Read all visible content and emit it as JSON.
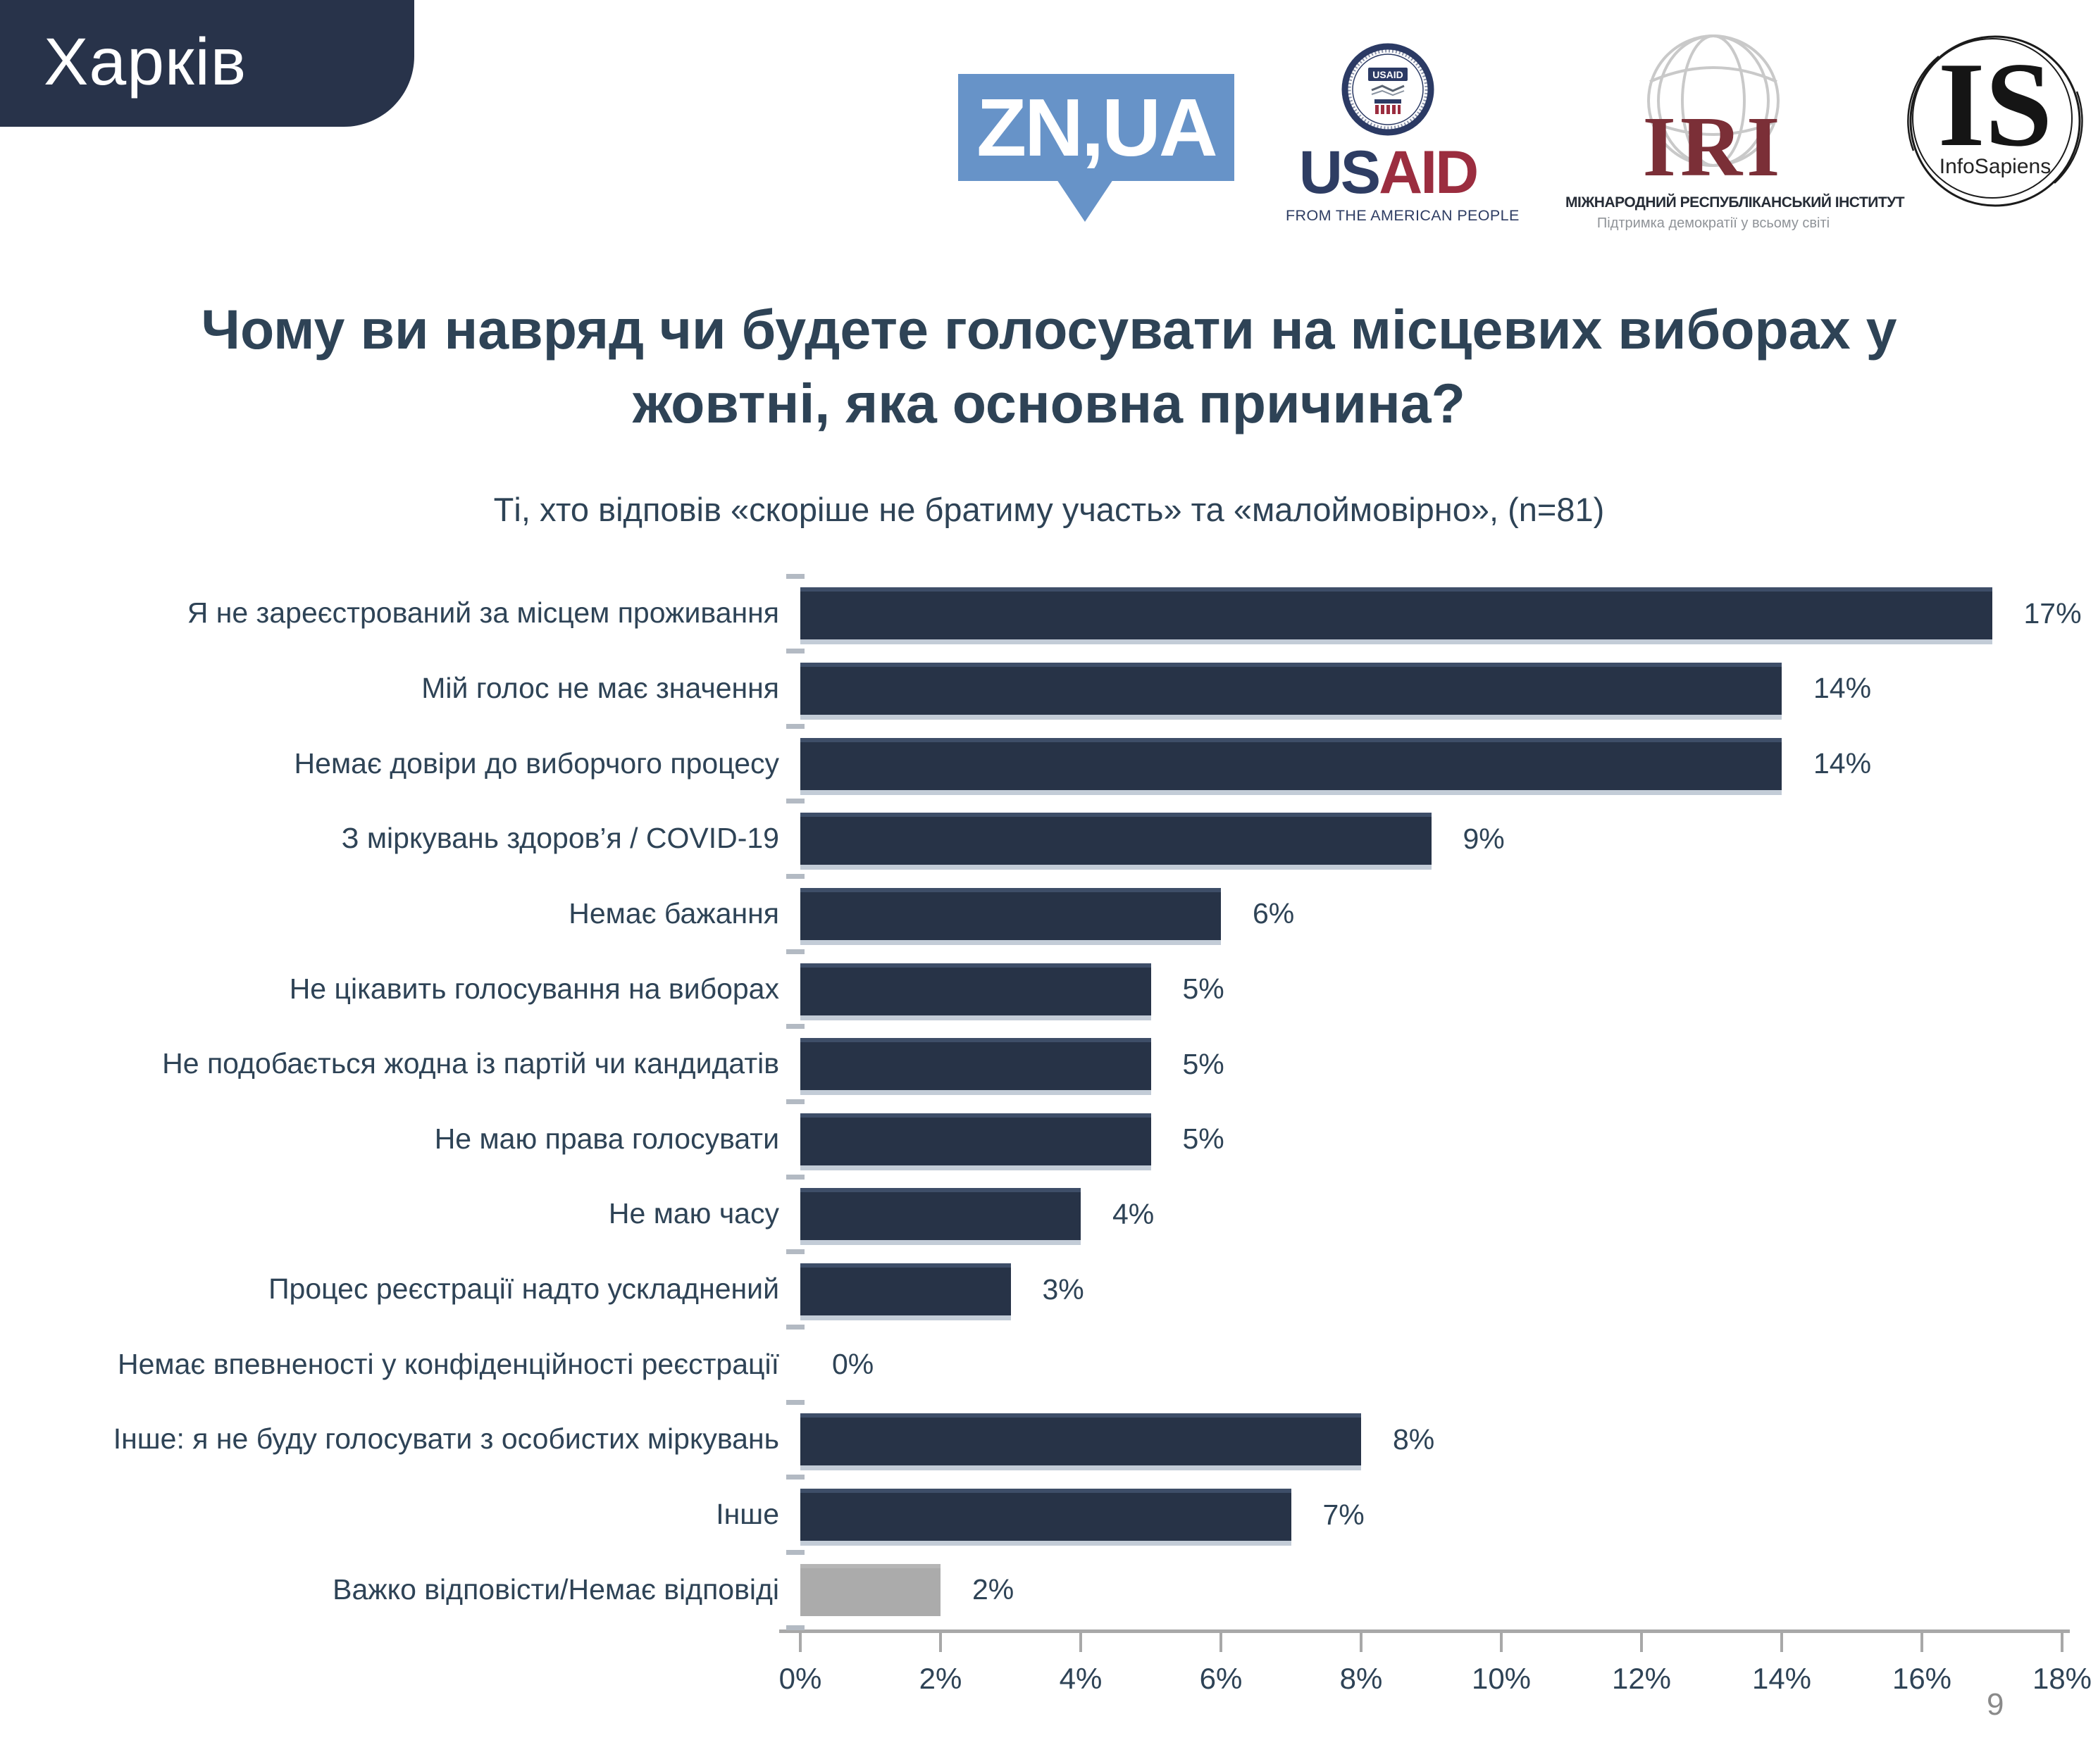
{
  "badge": {
    "label": "Харків"
  },
  "logos": {
    "znua": {
      "label": "ZN,UA",
      "color": "#6793c8"
    },
    "usaid": {
      "seal_label": "USAID",
      "wordmark_us": "US",
      "wordmark_aid": "AID",
      "tagline": "FROM THE AMERICAN PEOPLE",
      "navy": "#2e3d63",
      "red": "#9b2d3f"
    },
    "iri": {
      "acronym": "IRI",
      "name": "МІЖНАРОДНИЙ РЕСПУБЛІКАНСЬКИЙ ІНСТИТУТ",
      "tagline": "Підтримка демократії у всьому світі",
      "maroon": "#7b2f37"
    },
    "infosapiens": {
      "acronym": "IS",
      "name": "InfoSapiens"
    }
  },
  "chart_data": {
    "type": "bar",
    "orientation": "horizontal",
    "title": "Чому ви навряд чи будете голосувати на місцевих виборах у\nжовтні, яка основна причина?",
    "subtitle": "Ті, хто відповів «скоріше не братиму участь» та «малоймовірно», (n=81)",
    "xlim": [
      0,
      18
    ],
    "x_tick_labels": [
      "0%",
      "2%",
      "4%",
      "6%",
      "8%",
      "10%",
      "12%",
      "14%",
      "16%",
      "18%"
    ],
    "grid": false,
    "legend": false,
    "bar_color": "#273347",
    "no_answer_color": "#ababab",
    "categories": [
      "Я не зареєстрований за місцем проживання",
      "Мій голос не має значення",
      "Немає довіри до виборчого процесу",
      "З міркувань здоров’я / COVID-19",
      "Немає бажання",
      "Не цікавить голосування на виборах",
      "Не подобається жодна із партій чи кандидатів",
      "Не маю права голосувати",
      "Не маю часу",
      "Процес реєстрації надто ускладнений",
      "Немає впевненості у конфіденційності реєстрації",
      "Інше: я не буду голосувати з особистих міркувань",
      "Інше",
      "Важко відповісти/Немає відповіді"
    ],
    "values": [
      17,
      14,
      14,
      9,
      6,
      5,
      5,
      5,
      4,
      3,
      0,
      8,
      7,
      2
    ],
    "value_labels": [
      "17%",
      "14%",
      "14%",
      "9%",
      "6%",
      "5%",
      "5%",
      "5%",
      "4%",
      "3%",
      "0%",
      "8%",
      "7%",
      "2%"
    ],
    "muted_rows": [
      13
    ]
  },
  "footer": {
    "page_number": "9"
  }
}
